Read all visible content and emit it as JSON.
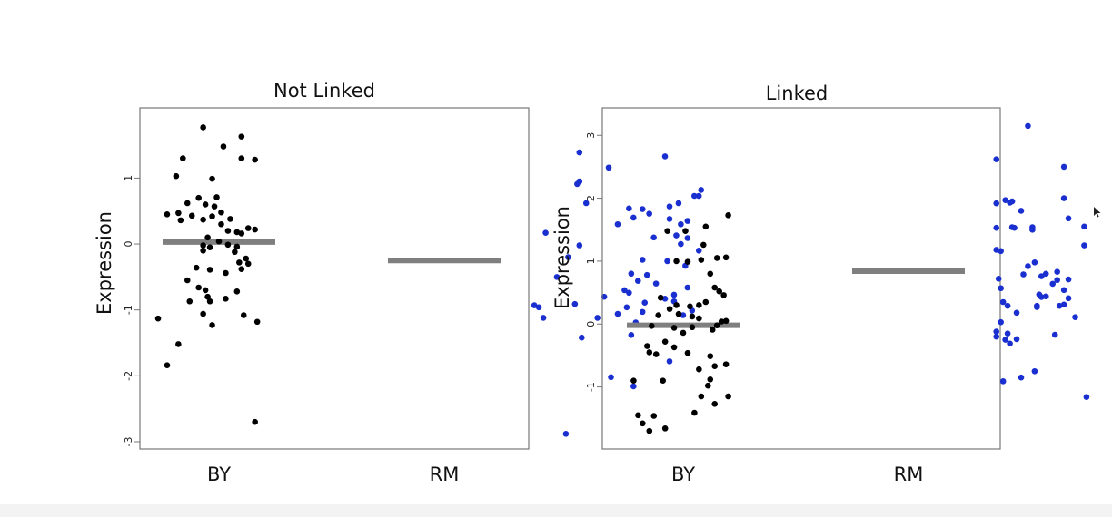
{
  "chart_data": [
    {
      "type": "scatter",
      "title": "Not Linked",
      "ylabel": "Expression",
      "categories": [
        "BY",
        "RM"
      ],
      "ylim": [
        -3,
        1.9
      ],
      "yticks": [
        -3,
        -2,
        -1,
        0,
        1
      ],
      "grid": false,
      "series": [
        {
          "category": "BY",
          "color": "#000000",
          "mean": 0.03,
          "points": [
            [
              0.13,
              1.77
            ],
            [
              0.3,
              1.63
            ],
            [
              0.22,
              1.48
            ],
            [
              0.04,
              1.3
            ],
            [
              0.3,
              1.3
            ],
            [
              0.36,
              1.28
            ],
            [
              0.01,
              1.03
            ],
            [
              0.17,
              0.99
            ],
            [
              0.11,
              0.7
            ],
            [
              0.19,
              0.71
            ],
            [
              0.06,
              0.62
            ],
            [
              0.14,
              0.6
            ],
            [
              0.18,
              0.57
            ],
            [
              0.21,
              0.48
            ],
            [
              0.02,
              0.47
            ],
            [
              -0.03,
              0.45
            ],
            [
              0.08,
              0.43
            ],
            [
              0.17,
              0.42
            ],
            [
              0.25,
              0.38
            ],
            [
              0.13,
              0.37
            ],
            [
              0.03,
              0.36
            ],
            [
              0.21,
              0.3
            ],
            [
              0.33,
              0.24
            ],
            [
              0.36,
              0.22
            ],
            [
              0.24,
              0.2
            ],
            [
              0.28,
              0.18
            ],
            [
              0.3,
              0.16
            ],
            [
              0.15,
              0.1
            ],
            [
              0.2,
              0.04
            ],
            [
              0.24,
              -0.01
            ],
            [
              0.13,
              -0.02
            ],
            [
              0.16,
              -0.05
            ],
            [
              0.28,
              -0.04
            ],
            [
              0.13,
              -0.1
            ],
            [
              0.27,
              -0.12
            ],
            [
              0.32,
              -0.22
            ],
            [
              0.29,
              -0.28
            ],
            [
              0.33,
              -0.3
            ],
            [
              0.1,
              -0.36
            ],
            [
              0.16,
              -0.39
            ],
            [
              0.3,
              -0.38
            ],
            [
              0.23,
              -0.44
            ],
            [
              0.06,
              -0.55
            ],
            [
              0.11,
              -0.66
            ],
            [
              0.14,
              -0.7
            ],
            [
              0.28,
              -0.72
            ],
            [
              0.15,
              -0.8
            ],
            [
              0.23,
              -0.83
            ],
            [
              0.07,
              -0.87
            ],
            [
              0.16,
              -0.87
            ],
            [
              0.13,
              -1.06
            ],
            [
              0.31,
              -1.08
            ],
            [
              -0.07,
              -1.13
            ],
            [
              0.37,
              -1.18
            ],
            [
              0.17,
              -1.23
            ],
            [
              0.02,
              -1.52
            ],
            [
              -0.03,
              -1.84
            ],
            [
              0.36,
              -2.7
            ]
          ]
        },
        {
          "category": "RM",
          "color": "#1a2fd0",
          "mean": -0.25,
          "points": [
            [
              1.8,
              1.39
            ],
            [
              2.18,
              1.33
            ],
            [
              1.93,
              1.16
            ],
            [
              1.8,
              0.95
            ],
            [
              1.79,
              0.91
            ],
            [
              2.34,
              0.82
            ],
            [
              2.31,
              0.73
            ],
            [
              2.33,
              0.73
            ],
            [
              2.24,
              0.62
            ],
            [
              1.83,
              0.62
            ],
            [
              2.2,
              0.57
            ],
            [
              2.02,
              0.54
            ],
            [
              2.08,
              0.53
            ],
            [
              2.11,
              0.46
            ],
            [
              2.04,
              0.4
            ],
            [
              2.2,
              0.38
            ],
            [
              2.28,
              0.35
            ],
            [
              2.25,
              0.3
            ],
            [
              1.97,
              0.3
            ],
            [
              1.65,
              0.17
            ],
            [
              2.23,
              0.13
            ],
            [
              2.13,
              0.1
            ],
            [
              2.28,
              0.09
            ],
            [
              2.25,
              0.0
            ],
            [
              1.8,
              -0.02
            ],
            [
              2.33,
              -0.1
            ],
            [
              1.75,
              -0.2
            ],
            [
              2.08,
              -0.24
            ],
            [
              2.19,
              -0.26
            ],
            [
              2.27,
              -0.33
            ],
            [
              2.03,
              -0.45
            ],
            [
              2.1,
              -0.47
            ],
            [
              1.7,
              -0.5
            ],
            [
              2.06,
              -0.56
            ],
            [
              2.14,
              -0.6
            ],
            [
              2.28,
              -0.66
            ],
            [
              2.0,
              -0.7
            ],
            [
              2.02,
              -0.74
            ],
            [
              2.22,
              -0.77
            ],
            [
              1.91,
              -0.8
            ],
            [
              2.18,
              -0.83
            ],
            [
              2.22,
              -0.87
            ],
            [
              2.09,
              -0.89
            ],
            [
              1.78,
              -0.91
            ],
            [
              1.6,
              -0.93
            ],
            [
              1.62,
              -0.96
            ],
            [
              2.01,
              -0.96
            ],
            [
              2.3,
              -1.01
            ],
            [
              2.08,
              -1.03
            ],
            [
              1.97,
              -1.06
            ],
            [
              2.26,
              -1.08
            ],
            [
              1.88,
              -1.12
            ],
            [
              1.64,
              -1.12
            ],
            [
              2.05,
              -1.19
            ],
            [
              2.03,
              -1.38
            ],
            [
              1.81,
              -1.42
            ],
            [
              2.2,
              -1.78
            ],
            [
              1.94,
              -2.02
            ],
            [
              2.04,
              -2.16
            ],
            [
              1.74,
              -2.88
            ]
          ]
        }
      ]
    },
    {
      "type": "scatter",
      "title": "Linked",
      "ylabel": "Expression",
      "categories": [
        "BY",
        "RM"
      ],
      "ylim": [
        -1.9,
        3.35
      ],
      "yticks": [
        -1,
        0,
        1,
        2,
        3
      ],
      "grid": false,
      "series": [
        {
          "category": "BY",
          "color": "#000000",
          "mean": -0.02,
          "points": [
            [
              0.4,
              1.73
            ],
            [
              0.3,
              1.55
            ],
            [
              0.21,
              1.48
            ],
            [
              0.13,
              1.48
            ],
            [
              0.29,
              1.26
            ],
            [
              0.28,
              1.02
            ],
            [
              0.39,
              1.06
            ],
            [
              0.35,
              1.05
            ],
            [
              0.17,
              1.0
            ],
            [
              0.22,
              0.99
            ],
            [
              0.32,
              0.8
            ],
            [
              0.34,
              0.58
            ],
            [
              0.36,
              0.52
            ],
            [
              0.38,
              0.46
            ],
            [
              0.1,
              0.42
            ],
            [
              0.3,
              0.35
            ],
            [
              0.17,
              0.3
            ],
            [
              0.27,
              0.3
            ],
            [
              0.23,
              0.28
            ],
            [
              0.14,
              0.24
            ],
            [
              0.18,
              0.16
            ],
            [
              0.09,
              0.14
            ],
            [
              0.24,
              0.12
            ],
            [
              0.27,
              0.09
            ],
            [
              0.37,
              0.04
            ],
            [
              0.39,
              0.05
            ],
            [
              0.35,
              -0.02
            ],
            [
              0.06,
              -0.03
            ],
            [
              0.24,
              -0.05
            ],
            [
              0.16,
              -0.06
            ],
            [
              0.33,
              -0.09
            ],
            [
              0.2,
              -0.14
            ],
            [
              0.12,
              -0.28
            ],
            [
              0.04,
              -0.35
            ],
            [
              0.16,
              -0.37
            ],
            [
              0.05,
              -0.45
            ],
            [
              0.22,
              -0.46
            ],
            [
              0.08,
              -0.48
            ],
            [
              0.32,
              -0.51
            ],
            [
              0.39,
              -0.64
            ],
            [
              0.34,
              -0.67
            ],
            [
              0.27,
              -0.72
            ],
            [
              0.32,
              -0.88
            ],
            [
              -0.02,
              -0.9
            ],
            [
              0.11,
              -0.9
            ],
            [
              0.31,
              -0.98
            ],
            [
              0.28,
              -1.15
            ],
            [
              0.4,
              -1.15
            ],
            [
              0.34,
              -1.27
            ],
            [
              0.25,
              -1.41
            ],
            [
              0.0,
              -1.45
            ],
            [
              0.07,
              -1.46
            ],
            [
              0.02,
              -1.58
            ],
            [
              0.12,
              -1.66
            ],
            [
              0.05,
              -1.7
            ]
          ]
        },
        {
          "category": "RM",
          "color": "#1a2fd0",
          "mean": 0.84,
          "points": [
            [
              1.73,
              3.15
            ],
            [
              1.59,
              2.62
            ],
            [
              1.89,
              2.5
            ],
            [
              1.89,
              2.0
            ],
            [
              1.63,
              1.97
            ],
            [
              1.66,
              1.95
            ],
            [
              1.65,
              1.93
            ],
            [
              1.59,
              1.92
            ],
            [
              1.7,
              1.8
            ],
            [
              1.91,
              1.68
            ],
            [
              1.98,
              1.55
            ],
            [
              1.66,
              1.54
            ],
            [
              1.75,
              1.54
            ],
            [
              1.67,
              1.53
            ],
            [
              1.59,
              1.53
            ],
            [
              1.75,
              1.5
            ],
            [
              1.98,
              1.25
            ],
            [
              1.59,
              1.18
            ],
            [
              1.61,
              1.16
            ],
            [
              1.76,
              0.98
            ],
            [
              1.73,
              0.92
            ],
            [
              1.86,
              0.83
            ],
            [
              1.81,
              0.8
            ],
            [
              1.71,
              0.79
            ],
            [
              1.79,
              0.76
            ],
            [
              1.6,
              0.72
            ],
            [
              1.91,
              0.71
            ],
            [
              1.86,
              0.7
            ],
            [
              1.84,
              0.64
            ],
            [
              1.61,
              0.57
            ],
            [
              1.89,
              0.54
            ],
            [
              1.78,
              0.47
            ],
            [
              1.81,
              0.44
            ],
            [
              1.79,
              0.43
            ],
            [
              1.91,
              0.41
            ],
            [
              1.62,
              0.35
            ],
            [
              1.89,
              0.31
            ],
            [
              1.64,
              0.29
            ],
            [
              1.77,
              0.29
            ],
            [
              1.87,
              0.29
            ],
            [
              1.77,
              0.27
            ],
            [
              1.68,
              0.18
            ],
            [
              1.94,
              0.11
            ],
            [
              1.61,
              0.03
            ],
            [
              1.59,
              -0.12
            ],
            [
              1.64,
              -0.15
            ],
            [
              1.59,
              -0.2
            ],
            [
              1.68,
              -0.24
            ],
            [
              1.63,
              -0.25
            ],
            [
              1.65,
              -0.31
            ],
            [
              1.85,
              -0.17
            ],
            [
              1.76,
              -0.75
            ],
            [
              1.7,
              -0.85
            ],
            [
              1.62,
              -0.91
            ],
            [
              1.99,
              -1.16
            ]
          ]
        }
      ]
    }
  ]
}
